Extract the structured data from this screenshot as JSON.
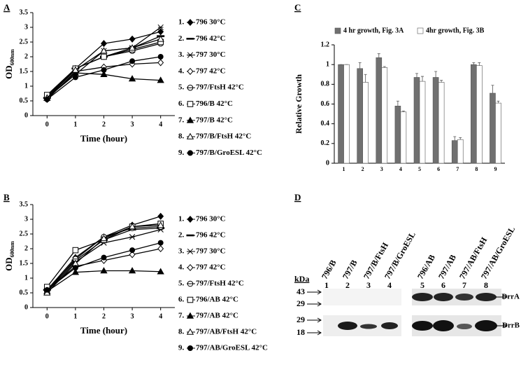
{
  "chart_data": [
    {
      "type": "line",
      "panel": "A",
      "xlabel": "Time (hour)",
      "ylabel": {
        "text": "OD",
        "subscript": "600nm"
      },
      "x": [
        0,
        1,
        2,
        3,
        4
      ],
      "xlim": [
        -0.5,
        4.5
      ],
      "xticks": [
        0,
        1,
        2,
        3,
        4
      ],
      "ylim": [
        0,
        3.5
      ],
      "yticks": [
        0,
        0.5,
        1,
        1.5,
        2,
        2.5,
        3,
        3.5
      ],
      "legend": "right",
      "series": [
        {
          "number": "1.",
          "name": "796 30°C",
          "marker": "diamond",
          "filled": true,
          "color": "#000000",
          "values": [
            0.6,
            1.6,
            2.45,
            2.6,
            2.85
          ]
        },
        {
          "number": "2.",
          "name": "796 42°C",
          "marker": "dash",
          "filled": true,
          "color": "#000000",
          "values": [
            0.6,
            1.6,
            2.0,
            2.3,
            2.7
          ]
        },
        {
          "number": "3.",
          "name": "797 30°C",
          "marker": "cross",
          "filled": false,
          "color": "#000000",
          "values": [
            0.6,
            1.4,
            2.2,
            2.3,
            3.0
          ]
        },
        {
          "number": "4.",
          "name": "797 42°C",
          "marker": "diamond",
          "filled": false,
          "color": "#000000",
          "values": [
            0.55,
            1.5,
            1.65,
            1.75,
            1.8
          ]
        },
        {
          "number": "5.",
          "name": "797/FtsH 42°C",
          "marker": "circle-line",
          "filled": false,
          "color": "#000000",
          "values": [
            0.65,
            1.6,
            2.0,
            2.2,
            2.45
          ]
        },
        {
          "number": "6.",
          "name": "796/B 42°C",
          "marker": "square",
          "filled": false,
          "color": "#000000",
          "values": [
            0.7,
            1.6,
            2.0,
            2.25,
            2.5
          ]
        },
        {
          "number": "7.",
          "name": "797/B 42°C",
          "marker": "triangle",
          "filled": true,
          "color": "#000000",
          "values": [
            0.6,
            1.45,
            1.4,
            1.25,
            1.2
          ]
        },
        {
          "number": "8.",
          "name": "797/B/FtsH 42°C",
          "marker": "triangle",
          "filled": false,
          "color": "#000000",
          "values": [
            0.6,
            1.55,
            2.2,
            2.3,
            2.6
          ]
        },
        {
          "number": "9.",
          "name": "797/B/GroESL 42°C",
          "marker": "circle",
          "filled": true,
          "color": "#000000",
          "values": [
            0.55,
            1.3,
            1.55,
            1.85,
            2.0
          ]
        }
      ]
    },
    {
      "type": "line",
      "panel": "B",
      "xlabel": "Time (hour)",
      "ylabel": {
        "text": "OD",
        "subscript": "600nm"
      },
      "x": [
        0,
        1,
        2,
        3,
        4
      ],
      "xlim": [
        -0.5,
        4.5
      ],
      "xticks": [
        0,
        1,
        2,
        3,
        4
      ],
      "ylim": [
        0,
        3.5
      ],
      "yticks": [
        0,
        0.5,
        1,
        1.5,
        2,
        2.5,
        3,
        3.5
      ],
      "legend": "right",
      "series": [
        {
          "number": "1.",
          "name": "796 30°C",
          "marker": "diamond",
          "filled": true,
          "color": "#000000",
          "values": [
            0.6,
            1.7,
            2.4,
            2.8,
            3.1
          ]
        },
        {
          "number": "2.",
          "name": "796 42°C",
          "marker": "dash",
          "filled": true,
          "color": "#000000",
          "values": [
            0.6,
            1.6,
            2.3,
            2.65,
            2.7
          ]
        },
        {
          "number": "3.",
          "name": "797 30°C",
          "marker": "cross",
          "filled": false,
          "color": "#000000",
          "values": [
            0.55,
            1.55,
            2.2,
            2.4,
            2.65
          ]
        },
        {
          "number": "4.",
          "name": "797 42°C",
          "marker": "diamond",
          "filled": false,
          "color": "#000000",
          "values": [
            0.6,
            1.4,
            1.6,
            1.8,
            2.0
          ]
        },
        {
          "number": "5.",
          "name": "797/FtsH 42°C",
          "marker": "circle-line",
          "filled": false,
          "color": "#000000",
          "values": [
            0.55,
            1.65,
            2.4,
            2.7,
            2.75
          ]
        },
        {
          "number": "6.",
          "name": "796/AB 42°C",
          "marker": "square",
          "filled": false,
          "color": "#000000",
          "values": [
            0.7,
            1.95,
            2.3,
            2.75,
            2.85
          ]
        },
        {
          "number": "7.",
          "name": "797/AB 42°C",
          "marker": "triangle",
          "filled": true,
          "color": "#000000",
          "values": [
            0.55,
            1.2,
            1.25,
            1.25,
            1.22
          ]
        },
        {
          "number": "8.",
          "name": "797/AB/FtsH 42°C",
          "marker": "triangle",
          "filled": false,
          "color": "#000000",
          "values": [
            0.5,
            1.5,
            2.35,
            2.75,
            2.8
          ]
        },
        {
          "number": "9.",
          "name": "797/AB/GroESL 42°C",
          "marker": "circle",
          "filled": true,
          "color": "#000000",
          "values": [
            0.6,
            1.35,
            1.7,
            1.95,
            2.2
          ]
        }
      ]
    },
    {
      "type": "bar",
      "panel": "C",
      "ylabel": "Relative Growth",
      "categories": [
        "1",
        "2",
        "3",
        "4",
        "5",
        "6",
        "7",
        "8",
        "9"
      ],
      "ylim": [
        0,
        1.2
      ],
      "yticks": [
        0,
        0.2,
        0.4,
        0.6,
        0.8,
        1,
        1.2
      ],
      "legend": "top",
      "series": [
        {
          "name": "4 hr growth, Fig. 3A",
          "color": "#707070",
          "values": [
            1.0,
            0.96,
            1.07,
            0.58,
            0.87,
            0.87,
            0.23,
            1.0,
            0.71
          ],
          "errors": [
            0,
            0.06,
            0.04,
            0.05,
            0.04,
            0.06,
            0.04,
            0.02,
            0.08
          ]
        },
        {
          "name": "4hr growth, Fig. 3B",
          "color": "#ffffff",
          "values": [
            1.0,
            0.82,
            0.97,
            0.52,
            0.83,
            0.82,
            0.24,
            0.99,
            0.61
          ],
          "errors": [
            0,
            0.08,
            0.01,
            0.01,
            0.05,
            0.02,
            0.02,
            0.03,
            0.02
          ]
        }
      ]
    }
  ],
  "blot": {
    "panel": "D",
    "unit": "kDa",
    "lanes": [
      {
        "name": "796/B",
        "number": "1"
      },
      {
        "name": "797/B",
        "number": "2"
      },
      {
        "name": "797/B/FtsH",
        "number": "3"
      },
      {
        "name": "797/B/GroESL",
        "number": "4"
      },
      {
        "name": "796/AB",
        "number": "5"
      },
      {
        "name": "797/AB",
        "number": "6"
      },
      {
        "name": "797/AB/FtsH",
        "number": "7"
      },
      {
        "name": "797/AB/GroESL",
        "number": "8"
      }
    ],
    "markers_top": [
      "43",
      "29"
    ],
    "markers_bottom": [
      "29",
      "18"
    ],
    "bands": [
      "DrrA",
      "DrrB"
    ]
  }
}
